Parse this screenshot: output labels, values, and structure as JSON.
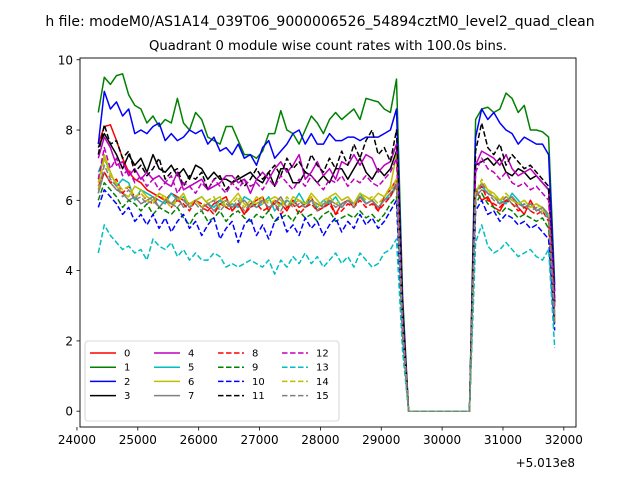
{
  "chart_data": {
    "type": "line",
    "suptitle": "h file: modeM0/AS1A14_039T06_9000006526_54894cztM0_level2_quad_clean",
    "title": "Quadrant 0 module wise count rates with 100.0s bins.",
    "xlabel": "",
    "ylabel": "",
    "x_offset_label": "+5.013e8",
    "xlim": [
      24050,
      32200
    ],
    "ylim": [
      -0.45,
      10.05
    ],
    "xticks": [
      "24000",
      "25000",
      "26000",
      "27000",
      "28000",
      "29000",
      "30000",
      "31000",
      "32000"
    ],
    "yticks": [
      "0",
      "2",
      "4",
      "6",
      "8",
      "10"
    ],
    "grid": false,
    "legend": {
      "placement": "lower-left",
      "columns": 4
    },
    "x": [
      24350,
      24450,
      24550,
      24650,
      24750,
      24850,
      24950,
      25050,
      25150,
      25250,
      25350,
      25450,
      25550,
      25650,
      25750,
      25850,
      25950,
      26050,
      26150,
      26250,
      26350,
      26450,
      26550,
      26650,
      26750,
      26850,
      26950,
      27050,
      27150,
      27250,
      27350,
      27450,
      27550,
      27650,
      27750,
      27850,
      27950,
      28050,
      28150,
      28250,
      28350,
      28450,
      28550,
      28650,
      28750,
      28850,
      28950,
      29050,
      29150,
      29250,
      29350,
      29450,
      30450,
      30550,
      30650,
      30750,
      30850,
      30950,
      31050,
      31150,
      31250,
      31350,
      31450,
      31550,
      31650,
      31750,
      31850
    ],
    "series": [
      {
        "name": "0",
        "color": "#ff0000",
        "dash": false,
        "values": [
          7.6,
          8.1,
          8.15,
          7.7,
          7.2,
          6.8,
          6.6,
          6.5,
          6.3,
          6.2,
          6.1,
          6.0,
          6.2,
          6.1,
          6.0,
          5.9,
          6.0,
          5.8,
          5.7,
          5.9,
          6.0,
          6.1,
          5.7,
          5.9,
          5.6,
          5.9,
          6.0,
          6.1,
          5.7,
          6.0,
          5.9,
          5.7,
          6.0,
          5.8,
          5.9,
          6.1,
          5.7,
          5.8,
          6.0,
          5.6,
          5.9,
          6.0,
          5.8,
          6.1,
          5.9,
          6.0,
          5.7,
          6.1,
          6.3,
          6.6,
          2.2,
          0.0,
          0.0,
          6.3,
          6.0,
          6.1,
          5.8,
          5.7,
          6.0,
          6.1,
          5.8,
          5.6,
          6.0,
          5.7,
          5.8,
          5.6,
          3.0
        ]
      },
      {
        "name": "1",
        "color": "#008000",
        "dash": false,
        "values": [
          8.5,
          9.5,
          9.3,
          9.55,
          9.6,
          9.0,
          8.7,
          8.6,
          8.2,
          8.4,
          8.1,
          8.3,
          8.2,
          8.9,
          8.2,
          8.0,
          8.5,
          8.3,
          7.8,
          7.7,
          7.6,
          8.1,
          8.1,
          7.7,
          7.3,
          7.3,
          7.2,
          7.4,
          7.9,
          7.9,
          8.55,
          8.0,
          7.9,
          7.6,
          8.0,
          8.4,
          8.2,
          7.9,
          8.3,
          8.5,
          8.3,
          8.45,
          8.6,
          8.3,
          8.9,
          8.85,
          8.8,
          8.6,
          8.5,
          9.45,
          3.3,
          0.0,
          0.0,
          8.3,
          8.6,
          8.65,
          8.5,
          8.6,
          9.05,
          8.9,
          8.5,
          8.7,
          8.0,
          8.0,
          7.95,
          7.8,
          3.6
        ]
      },
      {
        "name": "2",
        "color": "#0000ff",
        "dash": false,
        "values": [
          7.6,
          9.1,
          8.6,
          8.8,
          8.4,
          8.6,
          7.9,
          8.0,
          7.9,
          8.1,
          8.2,
          7.7,
          7.9,
          7.7,
          7.8,
          8.0,
          7.9,
          8.0,
          7.6,
          7.8,
          7.4,
          7.5,
          7.3,
          7.6,
          7.2,
          7.3,
          7.0,
          7.5,
          7.7,
          7.2,
          7.4,
          7.6,
          7.9,
          8.0,
          7.6,
          7.9,
          7.6,
          7.6,
          7.9,
          7.7,
          7.7,
          7.8,
          7.8,
          7.7,
          7.8,
          7.8,
          7.8,
          7.9,
          8.0,
          8.6,
          3.0,
          0.0,
          0.0,
          7.8,
          8.6,
          8.3,
          8.5,
          8.2,
          8.0,
          7.9,
          7.6,
          7.8,
          7.7,
          7.6,
          7.6,
          7.3,
          3.4
        ]
      },
      {
        "name": "3",
        "color": "#000000",
        "dash": false,
        "values": [
          7.5,
          7.9,
          7.6,
          7.3,
          6.9,
          7.3,
          7.0,
          7.2,
          6.8,
          7.3,
          6.9,
          6.8,
          7.0,
          6.7,
          6.9,
          6.6,
          7.0,
          6.9,
          6.6,
          6.8,
          6.6,
          6.6,
          6.5,
          6.6,
          6.7,
          6.8,
          6.6,
          6.5,
          6.8,
          6.4,
          6.9,
          6.9,
          6.5,
          6.5,
          6.8,
          6.7,
          6.5,
          6.7,
          6.5,
          6.9,
          6.9,
          6.6,
          6.9,
          7.2,
          6.8,
          6.6,
          6.9,
          6.7,
          6.9,
          7.4,
          2.6,
          0.0,
          0.0,
          7.0,
          7.1,
          7.2,
          7.0,
          7.2,
          6.8,
          6.7,
          6.9,
          6.8,
          6.6,
          6.7,
          6.5,
          6.3,
          3.1
        ]
      },
      {
        "name": "4",
        "color": "#bf00bf",
        "dash": false,
        "values": [
          7.2,
          7.8,
          7.5,
          7.0,
          7.1,
          6.7,
          6.9,
          6.6,
          6.8,
          6.6,
          6.7,
          6.5,
          6.4,
          6.8,
          6.3,
          6.4,
          6.5,
          6.6,
          6.3,
          6.4,
          6.5,
          6.7,
          6.7,
          6.5,
          6.6,
          6.2,
          6.6,
          6.8,
          6.6,
          6.9,
          7.1,
          6.8,
          7.0,
          7.3,
          6.6,
          6.8,
          7.1,
          6.7,
          6.9,
          6.6,
          7.1,
          7.0,
          7.3,
          7.0,
          7.3,
          7.2,
          6.8,
          7.0,
          7.1,
          7.6,
          2.7,
          0.0,
          0.0,
          7.0,
          7.4,
          7.3,
          7.2,
          7.0,
          7.3,
          6.9,
          6.7,
          6.8,
          6.9,
          6.7,
          6.5,
          6.3,
          3.2
        ]
      },
      {
        "name": "5",
        "color": "#00bfbf",
        "dash": false,
        "values": [
          6.8,
          7.2,
          6.8,
          6.4,
          6.6,
          6.5,
          6.0,
          6.3,
          6.2,
          6.1,
          6.0,
          5.9,
          6.2,
          6.0,
          6.1,
          5.8,
          6.0,
          6.1,
          5.9,
          5.8,
          6.0,
          5.8,
          5.9,
          5.8,
          6.1,
          6.0,
          5.8,
          5.9,
          6.1,
          5.7,
          5.9,
          6.0,
          5.9,
          6.2,
          5.9,
          6.0,
          5.8,
          6.0,
          5.9,
          6.1,
          5.8,
          6.0,
          5.9,
          6.2,
          5.9,
          6.0,
          5.8,
          6.0,
          6.2,
          6.4,
          2.3,
          0.0,
          0.0,
          6.3,
          6.4,
          6.2,
          6.1,
          6.0,
          5.9,
          6.2,
          6.0,
          5.8,
          5.9,
          5.7,
          5.8,
          5.5,
          2.8
        ]
      },
      {
        "name": "6",
        "color": "#bfbf00",
        "dash": false,
        "values": [
          6.5,
          7.3,
          6.8,
          6.4,
          6.2,
          6.1,
          6.4,
          6.3,
          6.1,
          6.0,
          6.2,
          6.1,
          5.9,
          6.0,
          6.2,
          5.8,
          6.0,
          6.1,
          5.9,
          6.0,
          6.1,
          5.8,
          6.0,
          6.2,
          5.9,
          5.8,
          6.1,
          5.9,
          6.0,
          6.1,
          6.0,
          5.8,
          6.1,
          6.0,
          5.9,
          6.2,
          6.0,
          5.8,
          6.1,
          6.2,
          6.0,
          6.1,
          5.9,
          6.2,
          6.1,
          6.0,
          6.2,
          6.1,
          6.4,
          7.3,
          2.4,
          0.0,
          0.0,
          6.2,
          6.5,
          6.3,
          6.2,
          6.0,
          6.1,
          6.0,
          5.9,
          6.0,
          5.8,
          5.9,
          5.8,
          5.6,
          2.6
        ]
      },
      {
        "name": "7",
        "color": "#808080",
        "dash": false,
        "values": [
          6.2,
          6.8,
          6.5,
          6.3,
          6.2,
          6.0,
          6.1,
          5.9,
          6.0,
          6.1,
          5.8,
          6.0,
          5.9,
          6.1,
          5.8,
          5.9,
          6.0,
          5.8,
          5.9,
          5.7,
          5.9,
          6.0,
          5.8,
          5.9,
          6.0,
          5.8,
          5.9,
          6.0,
          5.8,
          5.9,
          6.1,
          5.8,
          5.9,
          6.0,
          5.8,
          6.0,
          5.9,
          5.8,
          6.0,
          5.9,
          5.8,
          6.0,
          5.9,
          6.1,
          5.9,
          6.0,
          5.8,
          6.0,
          6.1,
          6.4,
          2.3,
          0.0,
          0.0,
          6.1,
          6.3,
          6.2,
          6.1,
          5.9,
          6.0,
          6.1,
          5.9,
          5.8,
          5.9,
          5.7,
          5.8,
          5.6,
          2.7
        ]
      },
      {
        "name": "8",
        "color": "#ff0000",
        "dash": true,
        "values": [
          6.4,
          6.8,
          6.5,
          6.6,
          6.2,
          6.4,
          6.1,
          6.2,
          6.0,
          5.9,
          6.1,
          6.0,
          5.8,
          6.0,
          5.9,
          5.7,
          6.0,
          5.9,
          5.8,
          5.6,
          5.9,
          5.8,
          5.7,
          5.9,
          5.6,
          5.8,
          5.9,
          5.7,
          5.8,
          5.9,
          5.6,
          5.8,
          5.9,
          5.6,
          5.8,
          5.9,
          5.7,
          5.8,
          5.9,
          5.6,
          5.7,
          5.9,
          5.8,
          6.0,
          5.8,
          5.9,
          5.7,
          5.9,
          6.1,
          6.5,
          2.2,
          0.0,
          0.0,
          6.2,
          6.4,
          6.0,
          5.9,
          5.8,
          6.0,
          5.9,
          5.7,
          5.8,
          5.7,
          5.6,
          5.7,
          5.4,
          2.5
        ]
      },
      {
        "name": "9",
        "color": "#008000",
        "dash": true,
        "values": [
          6.0,
          6.5,
          6.3,
          6.1,
          5.8,
          6.0,
          5.9,
          5.7,
          5.9,
          5.6,
          5.8,
          5.7,
          5.6,
          5.8,
          5.5,
          5.3,
          5.6,
          5.7,
          5.4,
          5.5,
          5.7,
          5.4,
          5.6,
          5.7,
          5.5,
          5.4,
          5.6,
          5.5,
          5.7,
          5.4,
          5.5,
          5.6,
          5.4,
          5.7,
          5.5,
          5.6,
          5.4,
          5.6,
          5.7,
          5.4,
          5.5,
          5.6,
          5.5,
          5.7,
          5.5,
          5.6,
          5.4,
          5.6,
          5.9,
          6.1,
          2.1,
          0.0,
          0.0,
          5.9,
          6.2,
          5.9,
          5.8,
          5.6,
          5.8,
          5.7,
          5.5,
          5.6,
          5.5,
          5.4,
          5.5,
          5.2,
          2.5
        ]
      },
      {
        "name": "10",
        "color": "#0000ff",
        "dash": true,
        "values": [
          5.8,
          6.3,
          6.1,
          5.9,
          5.6,
          5.8,
          5.4,
          5.6,
          5.3,
          5.6,
          5.2,
          5.5,
          5.1,
          5.4,
          5.6,
          5.2,
          5.4,
          5.0,
          5.3,
          5.5,
          4.9,
          5.2,
          5.4,
          4.8,
          5.3,
          5.5,
          5.0,
          5.3,
          4.9,
          5.4,
          5.6,
          5.1,
          5.3,
          5.0,
          5.5,
          5.2,
          5.4,
          5.0,
          5.3,
          5.5,
          5.1,
          5.4,
          5.2,
          5.6,
          5.3,
          5.5,
          5.2,
          5.4,
          5.7,
          6.0,
          2.0,
          0.0,
          0.0,
          5.7,
          6.0,
          5.6,
          5.7,
          5.4,
          5.6,
          5.5,
          5.3,
          5.4,
          5.2,
          5.3,
          5.1,
          4.9,
          2.3
        ]
      },
      {
        "name": "11",
        "color": "#000000",
        "dash": true,
        "values": [
          7.3,
          8.15,
          7.6,
          7.7,
          7.2,
          7.4,
          6.8,
          7.0,
          6.7,
          6.9,
          7.2,
          6.6,
          6.8,
          6.9,
          6.4,
          6.7,
          6.6,
          6.8,
          6.3,
          6.6,
          6.7,
          6.3,
          6.5,
          6.7,
          6.4,
          6.6,
          6.9,
          6.6,
          6.8,
          7.0,
          6.7,
          7.2,
          6.9,
          7.1,
          6.8,
          7.3,
          7.0,
          6.8,
          7.2,
          6.9,
          7.4,
          7.0,
          7.6,
          7.2,
          7.7,
          8.0,
          7.3,
          7.5,
          7.1,
          8.0,
          2.9,
          0.0,
          0.0,
          7.4,
          8.2,
          7.5,
          7.3,
          7.6,
          7.0,
          7.3,
          7.1,
          6.9,
          7.0,
          6.8,
          6.6,
          6.4,
          3.1
        ]
      },
      {
        "name": "12",
        "color": "#bf00bf",
        "dash": true,
        "values": [
          6.6,
          7.5,
          6.9,
          7.2,
          6.7,
          6.9,
          6.5,
          6.7,
          6.4,
          6.6,
          6.3,
          6.5,
          6.7,
          6.2,
          6.5,
          6.4,
          6.2,
          6.5,
          6.3,
          6.6,
          6.4,
          6.2,
          6.5,
          6.3,
          6.6,
          6.4,
          6.5,
          6.3,
          6.6,
          6.4,
          6.7,
          6.5,
          6.3,
          6.6,
          6.4,
          6.7,
          6.5,
          6.3,
          6.6,
          6.5,
          6.7,
          6.4,
          6.6,
          6.5,
          6.7,
          6.5,
          6.4,
          6.6,
          6.8,
          7.2,
          2.6,
          0.0,
          0.0,
          6.8,
          7.2,
          6.9,
          6.8,
          6.6,
          6.8,
          6.5,
          6.4,
          6.5,
          6.3,
          6.4,
          6.2,
          6.0,
          2.9
        ]
      },
      {
        "name": "13",
        "color": "#00bfbf",
        "dash": true,
        "values": [
          4.5,
          5.3,
          5.0,
          4.8,
          4.6,
          4.7,
          4.5,
          4.6,
          4.3,
          4.9,
          4.7,
          4.6,
          4.8,
          4.4,
          4.6,
          4.3,
          4.5,
          4.3,
          4.3,
          4.5,
          4.4,
          4.1,
          4.2,
          4.1,
          4.2,
          4.3,
          4.2,
          4.1,
          4.3,
          3.9,
          4.3,
          4.1,
          4.4,
          4.2,
          4.5,
          4.2,
          4.4,
          4.1,
          4.3,
          4.5,
          4.2,
          4.4,
          4.1,
          4.5,
          4.3,
          4.1,
          4.2,
          4.5,
          4.6,
          4.9,
          1.7,
          0.0,
          0.0,
          4.8,
          5.3,
          4.7,
          4.5,
          4.6,
          4.8,
          4.6,
          4.4,
          4.5,
          4.6,
          4.4,
          4.3,
          4.6,
          1.8
        ]
      },
      {
        "name": "14",
        "color": "#bfbf00",
        "dash": true,
        "values": [
          6.3,
          7.2,
          6.7,
          6.5,
          6.3,
          6.4,
          6.1,
          6.2,
          6.0,
          5.9,
          6.2,
          6.0,
          5.8,
          6.0,
          6.1,
          5.9,
          6.0,
          5.8,
          6.0,
          6.1,
          5.8,
          6.0,
          5.9,
          6.1,
          5.8,
          6.0,
          5.9,
          6.1,
          5.9,
          6.0,
          5.8,
          6.1,
          5.9,
          6.0,
          5.9,
          6.1,
          5.8,
          6.0,
          6.1,
          5.9,
          6.0,
          6.1,
          5.9,
          6.2,
          6.0,
          6.1,
          5.9,
          6.1,
          6.3,
          6.6,
          2.3,
          0.0,
          0.0,
          6.2,
          6.6,
          6.3,
          6.1,
          6.0,
          6.2,
          6.0,
          5.9,
          6.0,
          5.8,
          5.9,
          5.7,
          5.6,
          2.6
        ]
      },
      {
        "name": "15",
        "color": "#808080",
        "dash": true,
        "values": [
          6.2,
          7.0,
          6.6,
          6.4,
          6.1,
          6.3,
          6.0,
          6.1,
          5.9,
          6.0,
          5.8,
          6.0,
          5.9,
          5.8,
          6.0,
          5.8,
          5.9,
          5.7,
          5.9,
          6.0,
          5.7,
          5.9,
          5.8,
          6.0,
          5.7,
          5.9,
          5.8,
          6.0,
          5.8,
          5.9,
          5.7,
          6.0,
          5.8,
          5.9,
          5.8,
          6.0,
          5.7,
          5.9,
          6.0,
          5.8,
          5.9,
          6.0,
          5.8,
          6.1,
          5.9,
          6.0,
          5.8,
          6.0,
          6.2,
          6.5,
          2.2,
          0.0,
          0.0,
          6.1,
          6.5,
          6.2,
          6.0,
          5.9,
          6.1,
          5.9,
          5.8,
          5.9,
          5.7,
          5.8,
          5.6,
          5.5,
          2.5
        ]
      }
    ]
  }
}
